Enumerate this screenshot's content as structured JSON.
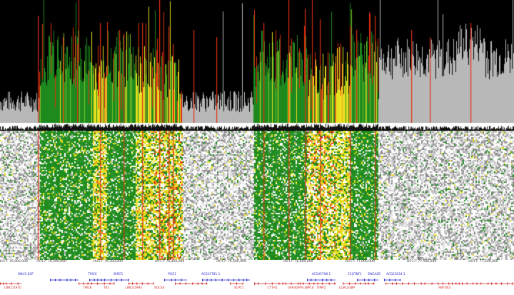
{
  "ruler": {
    "ticks": [
      {
        "label": "chr17: 76,000,000",
        "pos": 0.0
      },
      {
        "label": "chr17: 76,200,000",
        "pos": 0.1
      },
      {
        "label": "chr17: 76,300,000",
        "pos": 0.21
      },
      {
        "label": "chr17: 76,400,000",
        "pos": 0.33
      },
      {
        "label": "chr17: 76,500,000",
        "pos": 0.45
      },
      {
        "label": "chr17: 76,600,000",
        "pos": 0.58
      },
      {
        "label": "chr17: 77,000,000",
        "pos": 0.7
      },
      {
        "label": "chr17: 77,500,000",
        "pos": 0.82
      },
      {
        "label": "chr17: 77,600,000",
        "pos": 0.94
      }
    ]
  },
  "genes": {
    "top": [
      {
        "label": "RNU1-83P",
        "pos": 0.05
      },
      {
        "label": "TMC6",
        "pos": 0.18
      },
      {
        "label": "BIRC5",
        "pos": 0.23
      },
      {
        "label": "PGS1",
        "pos": 0.335
      },
      {
        "label": "AC015781.1",
        "pos": 0.41
      },
      {
        "label": "AC105798.1",
        "pos": 0.625
      },
      {
        "label": "C1QTNF1",
        "pos": 0.69
      },
      {
        "label": "ENGASE",
        "pos": 0.728
      },
      {
        "label": "AC022034.1",
        "pos": 0.77
      }
    ],
    "bottom": [
      {
        "label": "LINC01970",
        "pos": 0.025
      },
      {
        "label": "TMC8",
        "pos": 0.17
      },
      {
        "label": "TK1",
        "pos": 0.207
      },
      {
        "label": "LINC01993",
        "pos": 0.26
      },
      {
        "label": "SOCS3",
        "pos": 0.31
      },
      {
        "label": "SCAT1",
        "pos": 0.465
      },
      {
        "label": "CYTH1",
        "pos": 0.53
      },
      {
        "label": "USP36/RPL38P10",
        "pos": 0.585
      },
      {
        "label": "TIMP2",
        "pos": 0.625
      },
      {
        "label": "LGALS3BP",
        "pos": 0.675
      },
      {
        "label": "RBFOX3",
        "pos": 0.865
      }
    ]
  },
  "colors": {
    "background": "#000000",
    "green": "#1e8a1e",
    "yellow": "#e8e020",
    "red": "#e03010",
    "gray": "#b8b8b8",
    "gene_plus": "#2a2ad0",
    "gene_minus": "#d02a2a"
  }
}
